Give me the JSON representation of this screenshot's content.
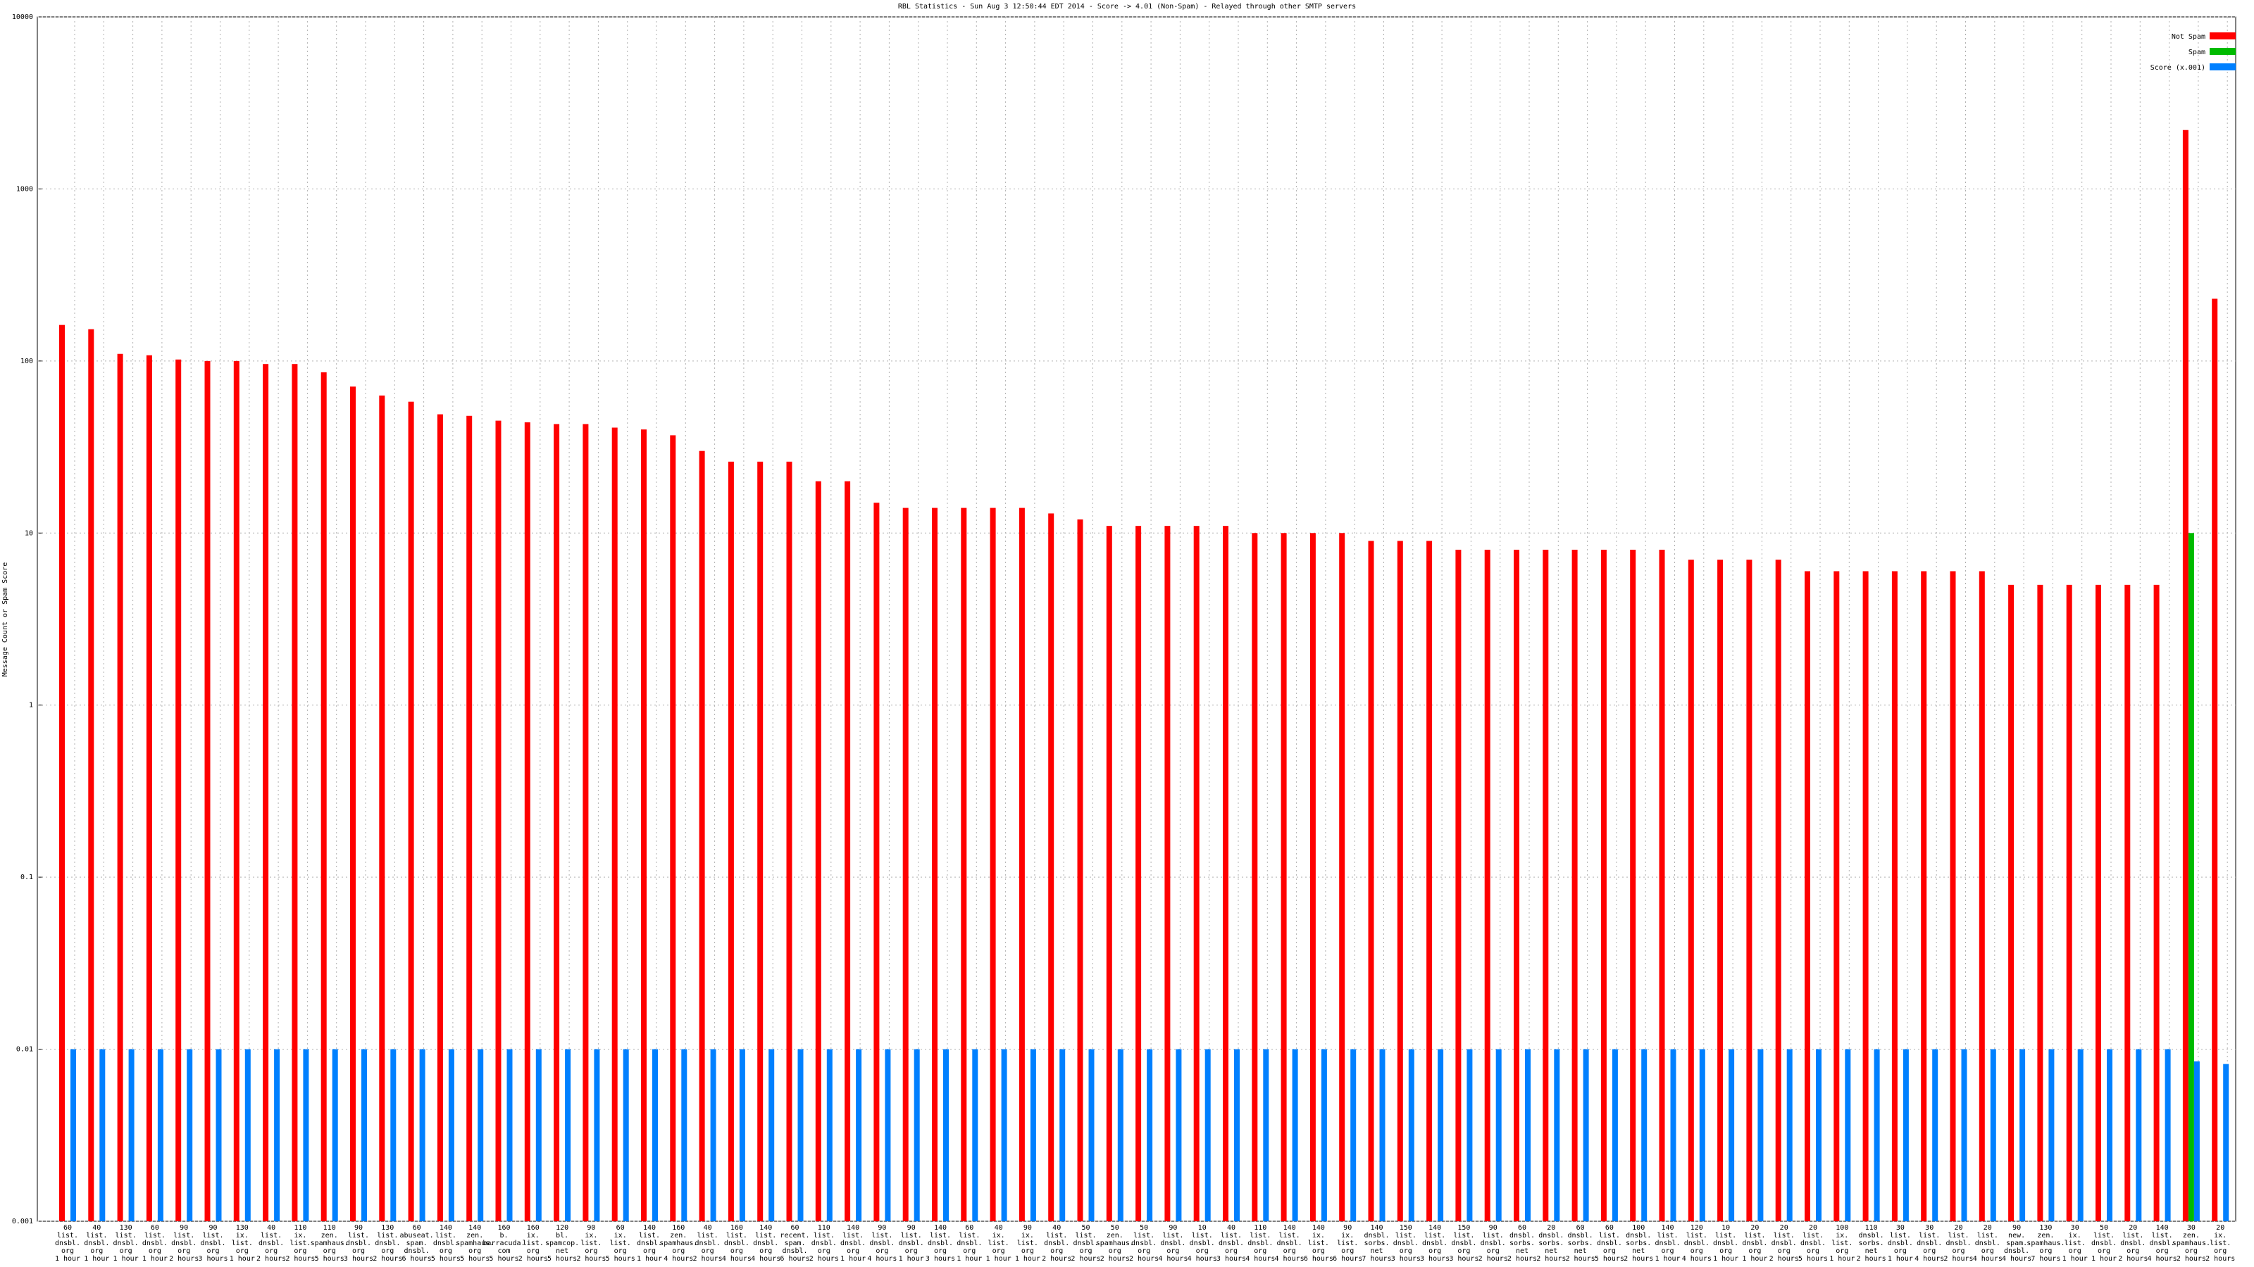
{
  "chart_data": {
    "type": "bar",
    "title": "RBL Statistics - Sun Aug  3 12:50:44 EDT 2014 - Score -> 4.01 (Non-Spam) - Relayed through other SMTP servers",
    "ylabel": "Message Count or Spam Score",
    "log_scale_y": true,
    "grid": true,
    "legend": "upper right",
    "ylim": [
      0.001,
      10000
    ],
    "yticks": [
      0.001,
      0.01,
      0.1,
      1,
      10,
      100,
      1000,
      10000
    ],
    "categories": [
      "60\nlist.\ndnsbl.\norg\n1 hour",
      "40\nlist.\ndnsbl.\norg\n1 hour",
      "130\nlist.\ndnsbl.\norg\n1 hour",
      "60\nlist.\ndnsbl.\norg\n1 hour",
      "90\nlist.\ndnsbl.\norg\n2 hours",
      "90\nlist.\ndnsbl.\norg\n3 hours",
      "130\nix.\nlist.\norg\n1 hour",
      "40\nlist.\ndnsbl.\norg\n2 hours",
      "110\nix.\nlist.\norg\n2 hours",
      "110\nzen.\nspamhaus.\norg\n5 hours",
      "90\nlist.\ndnsbl.\norg\n3 hours",
      "130\nlist.\ndnsbl.\norg\n2 hours",
      "60\nabuseat.\nspam.\ndnsbl.\n6 hours",
      "140\nlist.\ndnsbl.\norg\n5 hours",
      "140\nzen.\nspamhaus.\norg\n5 hours",
      "160\nb.\nbarracuda.\ncom\n5 hours",
      "160\nix.\nlist.\norg\n2 hours",
      "120\nbl.\nspamcop.\nnet\n5 hours",
      "90\nix.\nlist.\norg\n2 hours",
      "60\nix.\nlist.\norg\n5 hours",
      "140\nlist.\ndnsbl.\norg\n1 hour",
      "160\nzen.\nspamhaus.\norg\n4 hours",
      "40\nlist.\ndnsbl.\norg\n2 hours",
      "160\nlist.\ndnsbl.\norg\n4 hours",
      "140\nlist.\ndnsbl.\norg\n4 hours",
      "60\nrecent.\nspam.\ndnsbl.\n6 hours",
      "110\nlist.\ndnsbl.\norg\n2 hours",
      "140\nlist.\ndnsbl.\norg\n1 hour",
      "90\nlist.\ndnsbl.\norg\n4 hours",
      "90\nlist.\ndnsbl.\norg\n1 hour",
      "140\nlist.\ndnsbl.\norg\n3 hours",
      "60\nlist.\ndnsbl.\norg\n1 hour",
      "40\nix.\nlist.\norg\n1 hour",
      "90\nix.\nlist.\norg\n1 hour",
      "40\nlist.\ndnsbl.\norg\n2 hours",
      "50\nlist.\ndnsbl.\norg\n2 hours",
      "50\nzen.\nspamhaus.\norg\n2 hours",
      "50\nlist.\ndnsbl.\norg\n2 hours",
      "90\nlist.\ndnsbl.\norg\n4 hours",
      "10\nlist.\ndnsbl.\norg\n4 hours",
      "40\nlist.\ndnsbl.\norg\n3 hours",
      "110\nlist.\ndnsbl.\norg\n4 hours",
      "140\nlist.\ndnsbl.\norg\n4 hours",
      "140\nix.\nlist.\norg\n6 hours",
      "90\nix.\nlist.\norg\n6 hours",
      "140\ndnsbl.\nsorbs.\nnet\n7 hours",
      "150\nlist.\ndnsbl.\norg\n3 hours",
      "140\nlist.\ndnsbl.\norg\n3 hours",
      "150\nlist.\ndnsbl.\norg\n3 hours",
      "90\nlist.\ndnsbl.\norg\n2 hours",
      "60\ndnsbl.\nsorbs.\nnet\n2 hours",
      "20\ndnsbl.\nsorbs.\nnet\n2 hours",
      "60\ndnsbl.\nsorbs.\nnet\n2 hours",
      "60\nlist.\ndnsbl.\norg\n5 hours",
      "100\ndnsbl.\nsorbs.\nnet\n2 hours",
      "140\nlist.\ndnsbl.\norg\n1 hour",
      "120\nlist.\ndnsbl.\norg\n4 hours",
      "10\nlist.\ndnsbl.\norg\n1 hour",
      "20\nlist.\ndnsbl.\norg\n1 hour",
      "20\nlist.\ndnsbl.\norg\n2 hours",
      "20\nlist.\ndnsbl.\norg\n5 hours",
      "100\nix.\nlist.\norg\n1 hour",
      "110\ndnsbl.\nsorbs.\nnet\n2 hours",
      "30\nlist.\ndnsbl.\norg\n1 hour",
      "30\nlist.\ndnsbl.\norg\n4 hours",
      "20\nlist.\ndnsbl.\norg\n2 hours",
      "20\nlist.\ndnsbl.\norg\n4 hours",
      "90\nnew.\nspam.\ndnsbl.\n4 hours",
      "130\nzen.\nspamhaus.\norg\n7 hours",
      "30\nix.\nlist.\norg\n1 hour",
      "50\nlist.\ndnsbl.\norg\n1 hour",
      "20\nlist.\ndnsbl.\norg\n2 hours",
      "140\nlist.\ndnsbl.\norg\n4 hours",
      "30\nzen.\nspamhaus.\norg\n2 hours",
      "20\nix.\nlist.\norg\n2 hours"
    ],
    "series": [
      {
        "name": "Not Spam",
        "color": "#ff0000",
        "values": [
          162,
          153,
          110,
          108,
          102,
          100,
          100,
          96,
          96,
          86,
          71,
          63,
          58,
          49,
          48,
          45,
          44,
          43,
          43,
          41,
          40,
          37,
          30,
          26,
          26,
          26,
          20,
          20,
          15,
          14,
          14,
          14,
          14,
          14,
          13,
          12,
          11,
          11,
          11,
          11,
          11,
          10,
          10,
          10,
          10,
          9,
          9,
          9,
          8,
          8,
          8,
          8,
          8,
          8,
          8,
          8,
          7,
          7,
          7,
          7,
          6,
          6,
          6,
          6,
          6,
          6,
          6,
          5,
          5,
          5,
          5,
          5,
          5,
          2200,
          230
        ]
      },
      {
        "name": "Spam",
        "color": "#00bb00",
        "values": [
          0,
          0,
          0,
          0,
          0,
          0,
          0,
          0,
          0,
          0,
          0,
          0,
          0,
          0,
          0,
          0,
          0,
          0,
          0,
          0,
          0,
          0,
          0,
          0,
          0,
          0,
          0,
          0,
          0,
          0,
          0,
          0,
          0,
          0,
          0,
          0,
          0,
          0,
          0,
          0,
          0,
          0,
          0,
          0,
          0,
          0,
          0,
          0,
          0,
          0,
          0,
          0,
          0,
          0,
          0,
          0,
          0,
          0,
          0,
          0,
          0,
          0,
          0,
          0,
          0,
          0,
          0,
          0,
          0,
          0,
          0,
          0,
          0,
          10,
          0
        ]
      },
      {
        "name": "Score (x.001)",
        "color": "#0080ff",
        "values": [
          0.01,
          0.01,
          0.01,
          0.01,
          0.01,
          0.01,
          0.01,
          0.01,
          0.01,
          0.01,
          0.01,
          0.01,
          0.01,
          0.01,
          0.01,
          0.01,
          0.01,
          0.01,
          0.01,
          0.01,
          0.01,
          0.01,
          0.01,
          0.01,
          0.01,
          0.01,
          0.01,
          0.01,
          0.01,
          0.01,
          0.01,
          0.01,
          0.01,
          0.01,
          0.01,
          0.01,
          0.01,
          0.01,
          0.01,
          0.01,
          0.01,
          0.01,
          0.01,
          0.01,
          0.01,
          0.01,
          0.01,
          0.01,
          0.01,
          0.01,
          0.01,
          0.01,
          0.01,
          0.01,
          0.01,
          0.01,
          0.01,
          0.01,
          0.01,
          0.01,
          0.01,
          0.01,
          0.01,
          0.01,
          0.01,
          0.01,
          0.01,
          0.01,
          0.01,
          0.01,
          0.01,
          0.01,
          0.01,
          0.0085,
          0.0082
        ]
      }
    ]
  }
}
